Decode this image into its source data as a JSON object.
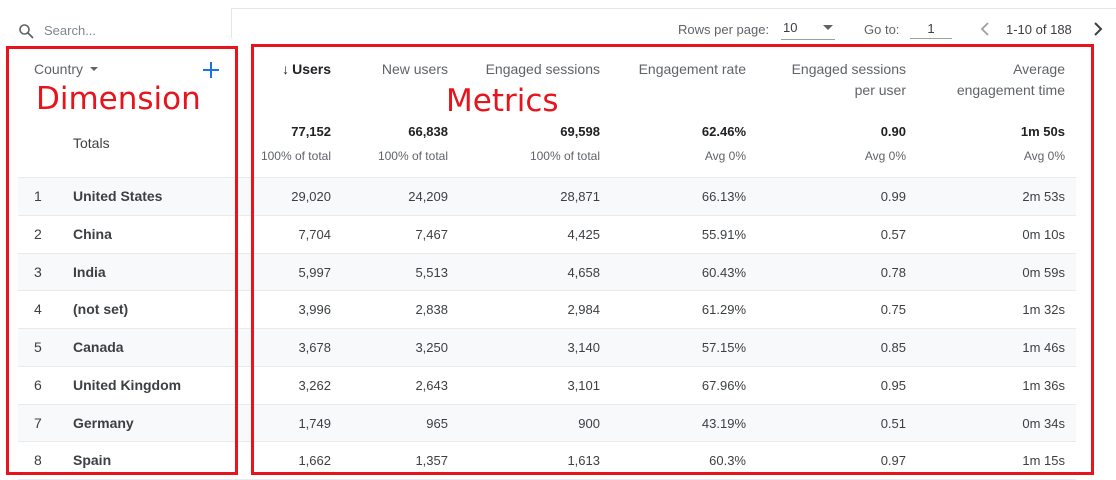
{
  "toolbar": {
    "search_placeholder": "Search...",
    "rows_per_page_label": "Rows per page:",
    "rows_per_page_value": "10",
    "go_to_label": "Go to:",
    "go_to_value": "1",
    "range_text": "1-10 of 188"
  },
  "dimension": {
    "header": "Country",
    "totals_label": "Totals"
  },
  "metrics": {
    "headers": [
      {
        "lines": [
          "Users"
        ],
        "sorted": true
      },
      {
        "lines": [
          "New users"
        ],
        "sorted": false
      },
      {
        "lines": [
          "Engaged sessions"
        ],
        "sorted": false
      },
      {
        "lines": [
          "Engagement rate"
        ],
        "sorted": false
      },
      {
        "lines": [
          "Engaged sessions",
          "per user"
        ],
        "sorted": false
      },
      {
        "lines": [
          "Average",
          "engagement time"
        ],
        "sorted": false
      }
    ],
    "totals": [
      "77,152",
      "66,838",
      "69,598",
      "62.46%",
      "0.90",
      "1m 50s"
    ],
    "totals_sub": [
      "100% of total",
      "100% of total",
      "100% of total",
      "Avg 0%",
      "Avg 0%",
      "Avg 0%"
    ]
  },
  "rows": [
    {
      "rank": "1",
      "country": "United States",
      "values": [
        "29,020",
        "24,209",
        "28,871",
        "66.13%",
        "0.99",
        "2m 53s"
      ]
    },
    {
      "rank": "2",
      "country": "China",
      "values": [
        "7,704",
        "7,467",
        "4,425",
        "55.91%",
        "0.57",
        "0m 10s"
      ]
    },
    {
      "rank": "3",
      "country": "India",
      "values": [
        "5,997",
        "5,513",
        "4,658",
        "60.43%",
        "0.78",
        "0m 59s"
      ]
    },
    {
      "rank": "4",
      "country": "(not set)",
      "values": [
        "3,996",
        "2,838",
        "2,984",
        "61.29%",
        "0.75",
        "1m 32s"
      ]
    },
    {
      "rank": "5",
      "country": "Canada",
      "values": [
        "3,678",
        "3,250",
        "3,140",
        "57.15%",
        "0.85",
        "1m 46s"
      ]
    },
    {
      "rank": "6",
      "country": "United Kingdom",
      "values": [
        "3,262",
        "2,643",
        "3,101",
        "67.96%",
        "0.95",
        "1m 36s"
      ]
    },
    {
      "rank": "7",
      "country": "Germany",
      "values": [
        "1,749",
        "965",
        "900",
        "43.19%",
        "0.51",
        "0m 34s"
      ]
    },
    {
      "rank": "8",
      "country": "Spain",
      "values": [
        "1,662",
        "1,357",
        "1,613",
        "60.3%",
        "0.97",
        "1m 15s"
      ]
    }
  ],
  "annotations": {
    "dimension_label": "Dimension",
    "metrics_label": "Metrics",
    "color": "#e8141c"
  },
  "icons": {
    "search": "search-icon",
    "add": "plus-icon",
    "sort": "arrow-down-icon",
    "prev": "chevron-left-icon",
    "next": "chevron-right-icon",
    "dropdown": "caret-down-icon"
  },
  "colors": {
    "accent": "#1a73e8",
    "row_alt": "#f8f9fa",
    "annotation": "#e8141c"
  }
}
